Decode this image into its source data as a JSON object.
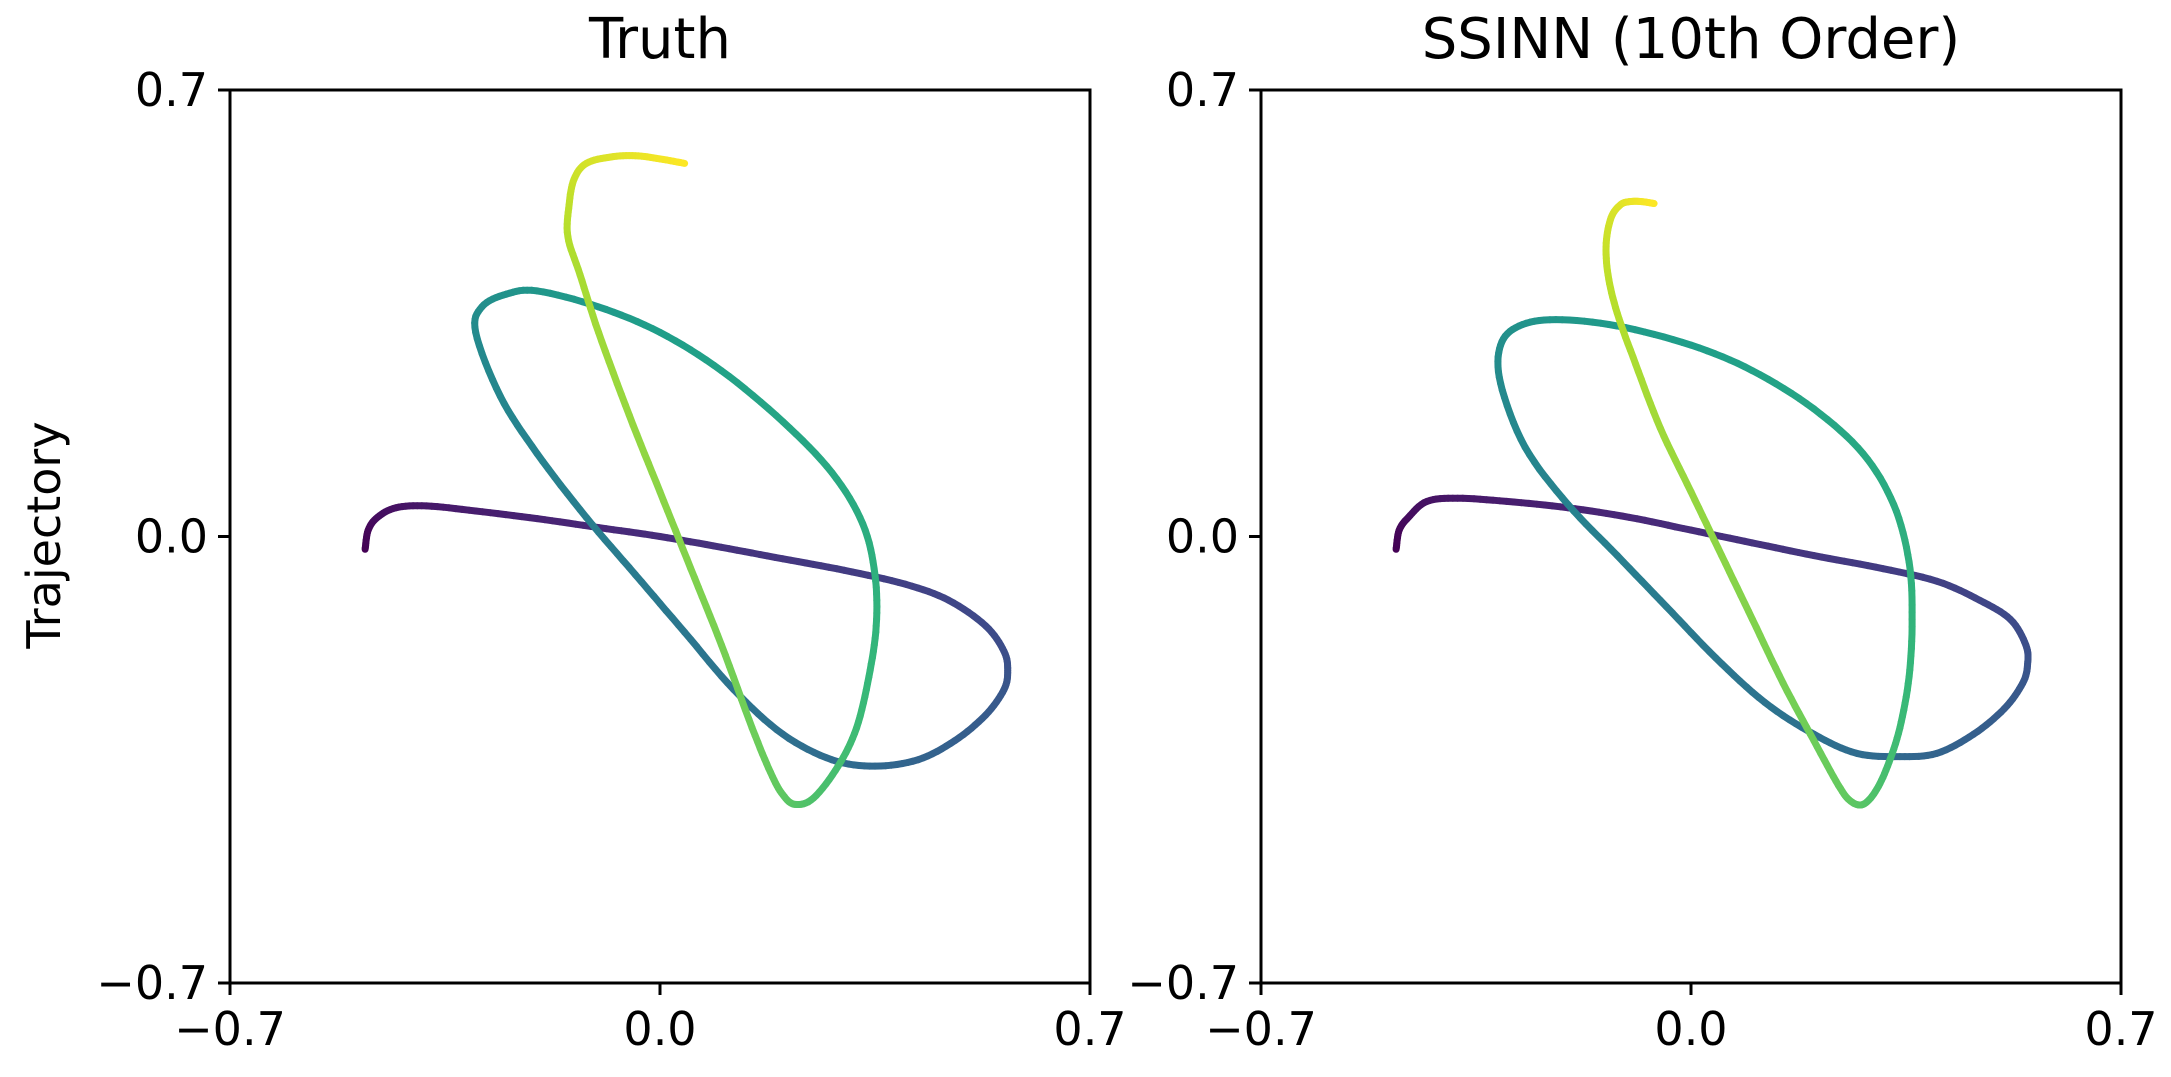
{
  "chart_data": [
    {
      "type": "line",
      "title": "Truth",
      "ylabel": "Trajectory",
      "xlim": [
        -0.7,
        0.7
      ],
      "ylim": [
        -0.7,
        0.7
      ],
      "xticks": [
        "−0.7",
        "0.0",
        "0.7"
      ],
      "yticks": [
        "−0.7",
        "0.0",
        "0.7"
      ],
      "grid": false,
      "colormap": "viridis (color encodes time along trajectory)",
      "series": [
        {
          "x": [
            -0.48,
            -0.475,
            -0.46,
            -0.43,
            -0.38,
            -0.3,
            -0.2,
            -0.1,
            0.0,
            0.1,
            0.2,
            0.3,
            0.4,
            0.47,
            0.53,
            0.56,
            0.566,
            0.56,
            0.53,
            0.48,
            0.42,
            0.35,
            0.28,
            0.2,
            0.12,
            0.04,
            -0.04,
            -0.12,
            -0.2,
            -0.26,
            -0.3,
            -0.29,
            -0.25,
            -0.2,
            -0.1,
            0.0,
            0.1,
            0.2,
            0.28,
            0.33,
            0.35,
            0.352,
            0.34,
            0.32,
            0.29,
            0.25,
            0.22,
            0.2,
            0.18,
            0.15,
            0.1,
            0.05,
            0.0,
            -0.05,
            -0.1,
            -0.13,
            -0.15,
            -0.148,
            -0.14,
            -0.12,
            -0.08,
            -0.04,
            0.0,
            0.04
          ],
          "y": [
            -0.02,
            0.01,
            0.03,
            0.045,
            0.048,
            0.04,
            0.028,
            0.014,
            0.0,
            -0.017,
            -0.035,
            -0.053,
            -0.075,
            -0.1,
            -0.14,
            -0.18,
            -0.21,
            -0.24,
            -0.28,
            -0.32,
            -0.35,
            -0.36,
            -0.35,
            -0.31,
            -0.24,
            -0.15,
            -0.06,
            0.03,
            0.13,
            0.22,
            0.32,
            0.36,
            0.38,
            0.385,
            0.36,
            0.32,
            0.26,
            0.18,
            0.1,
            0.02,
            -0.06,
            -0.14,
            -0.22,
            -0.3,
            -0.36,
            -0.41,
            -0.42,
            -0.405,
            -0.37,
            -0.3,
            -0.17,
            -0.05,
            0.07,
            0.19,
            0.32,
            0.41,
            0.47,
            0.52,
            0.56,
            0.585,
            0.595,
            0.597,
            0.592,
            0.585
          ]
        }
      ]
    },
    {
      "type": "line",
      "title": "SSINN (10th Order)",
      "xlim": [
        -0.7,
        0.7
      ],
      "ylim": [
        -0.7,
        0.7
      ],
      "xticks": [
        "−0.7",
        "0.0",
        "0.7"
      ],
      "yticks": [
        "−0.7",
        "0.0",
        "0.7"
      ],
      "grid": false,
      "colormap": "viridis (color encodes time along trajectory)",
      "series": [
        {
          "x": [
            -0.48,
            -0.475,
            -0.46,
            -0.43,
            -0.38,
            -0.3,
            -0.2,
            -0.1,
            0.0,
            0.1,
            0.2,
            0.3,
            0.4,
            0.47,
            0.52,
            0.545,
            0.548,
            0.54,
            0.51,
            0.46,
            0.4,
            0.34,
            0.27,
            0.2,
            0.12,
            0.04,
            -0.04,
            -0.12,
            -0.2,
            -0.27,
            -0.31,
            -0.31,
            -0.28,
            -0.22,
            -0.12,
            0.0,
            0.1,
            0.2,
            0.28,
            0.33,
            0.355,
            0.36,
            0.355,
            0.34,
            0.32,
            0.3,
            0.28,
            0.26,
            0.24,
            0.2,
            0.15,
            0.1,
            0.05,
            0.0,
            -0.05,
            -0.09,
            -0.12,
            -0.135,
            -0.138,
            -0.13,
            -0.115,
            -0.1,
            -0.08,
            -0.06
          ],
          "y": [
            -0.02,
            0.01,
            0.03,
            0.055,
            0.06,
            0.055,
            0.045,
            0.03,
            0.01,
            -0.01,
            -0.03,
            -0.048,
            -0.07,
            -0.1,
            -0.13,
            -0.17,
            -0.2,
            -0.23,
            -0.27,
            -0.31,
            -0.34,
            -0.345,
            -0.34,
            -0.31,
            -0.26,
            -0.19,
            -0.11,
            -0.03,
            0.05,
            0.14,
            0.24,
            0.3,
            0.33,
            0.34,
            0.33,
            0.3,
            0.26,
            0.2,
            0.13,
            0.05,
            -0.04,
            -0.13,
            -0.22,
            -0.3,
            -0.36,
            -0.4,
            -0.42,
            -0.415,
            -0.39,
            -0.32,
            -0.23,
            -0.13,
            -0.03,
            0.07,
            0.17,
            0.27,
            0.35,
            0.41,
            0.46,
            0.5,
            0.52,
            0.525,
            0.525,
            0.522
          ]
        }
      ]
    }
  ]
}
